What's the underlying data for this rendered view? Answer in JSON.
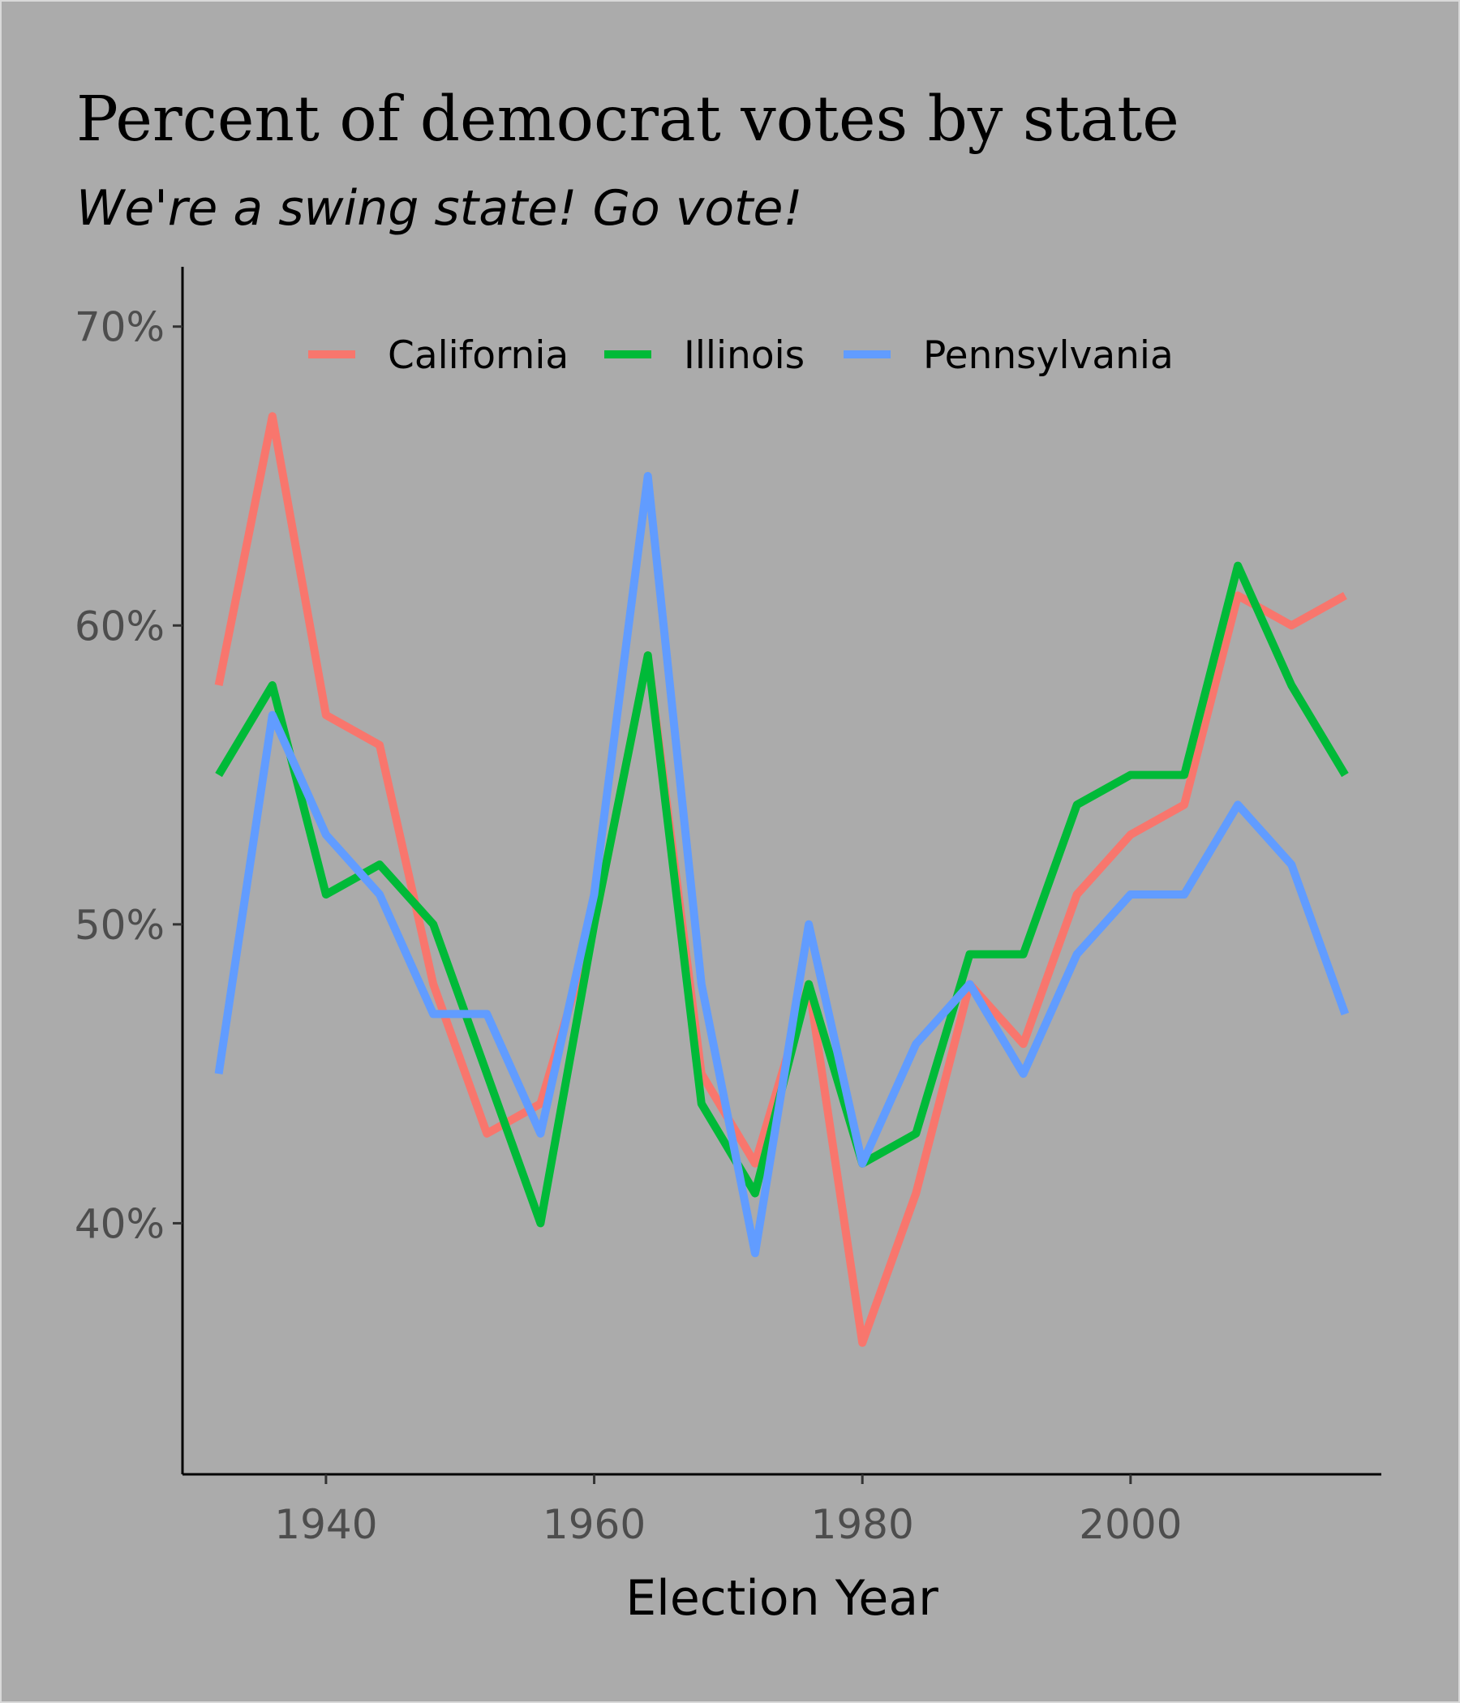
{
  "chart_data": {
    "type": "line",
    "title": "Percent of democrat votes by state",
    "subtitle": "We're a swing state! Go vote!",
    "xlabel": "Election Year",
    "ylabel": "",
    "x": [
      1932,
      1936,
      1940,
      1944,
      1948,
      1952,
      1956,
      1960,
      1964,
      1968,
      1972,
      1976,
      1980,
      1984,
      1988,
      1992,
      1996,
      2000,
      2004,
      2008,
      2012,
      2016
    ],
    "series": [
      {
        "name": "California",
        "color": "#f8766d",
        "values": [
          58,
          67,
          57,
          56,
          48,
          43,
          44,
          50,
          59,
          45,
          42,
          48,
          36,
          41,
          48,
          46,
          51,
          53,
          54,
          61,
          60,
          61
        ]
      },
      {
        "name": "Illinois",
        "color": "#00ba38",
        "values": [
          55,
          58,
          51,
          52,
          50,
          45,
          40,
          50,
          59,
          44,
          41,
          48,
          42,
          43,
          49,
          49,
          54,
          55,
          55,
          62,
          58,
          55
        ]
      },
      {
        "name": "Pennsylvania",
        "color": "#619cff",
        "values": [
          45,
          57,
          53,
          51,
          47,
          47,
          43,
          51,
          65,
          48,
          39,
          50,
          42,
          46,
          48,
          45,
          49,
          51,
          51,
          54,
          52,
          47
        ]
      }
    ],
    "xlim": [
      1929.3,
      2018.7
    ],
    "ylim": [
      31.6,
      72.0
    ],
    "x_ticks": [
      1940,
      1960,
      1980,
      2000
    ],
    "x_tick_labels": [
      "1940",
      "1960",
      "1980",
      "2000"
    ],
    "y_ticks": [
      40,
      50,
      60,
      70
    ],
    "y_tick_labels": [
      "40%",
      "50%",
      "60%",
      "70%"
    ],
    "grid": false,
    "legend_position": "top",
    "background": "#ababab"
  }
}
